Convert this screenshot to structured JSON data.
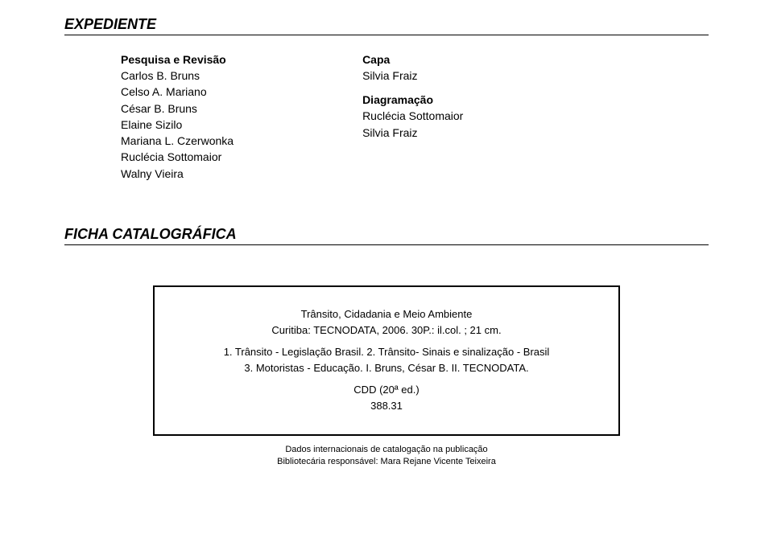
{
  "headers": {
    "expediente": "EXPEDIENTE",
    "ficha": "FICHA CATALOGRÁFICA"
  },
  "col1": {
    "group1_title": "Pesquisa e Revisão",
    "names": [
      "Carlos B. Bruns",
      "Celso A. Mariano",
      "César B. Bruns",
      "Elaine Sizilo",
      "Mariana L. Czerwonka",
      "Ruclécia Sottomaior",
      "Walny Vieira"
    ]
  },
  "col2": {
    "capa_title": "Capa",
    "capa_name": "Silvia Fraiz",
    "diag_title": "Diagramação",
    "diag_name1": "Ruclécia Sottomaior",
    "diag_name2": "Silvia Fraiz"
  },
  "catalog": {
    "line1": "Trânsito, Cidadania e Meio Ambiente",
    "line2": "Curitiba: TECNODATA, 2006. 30P.: il.col. ; 21 cm.",
    "line3": "1. Trânsito - Legislação Brasil. 2. Trânsito- Sinais e sinalização - Brasil",
    "line4": "3. Motoristas - Educação. I. Bruns, César B.  II. TECNODATA.",
    "line5": "CDD (20ª ed.)",
    "line6": "388.31"
  },
  "footer": {
    "line1": "Dados internacionais de catalogação na publicação",
    "line2": "Bibliotecária responsável: Mara Rejane Vicente Teixeira"
  }
}
